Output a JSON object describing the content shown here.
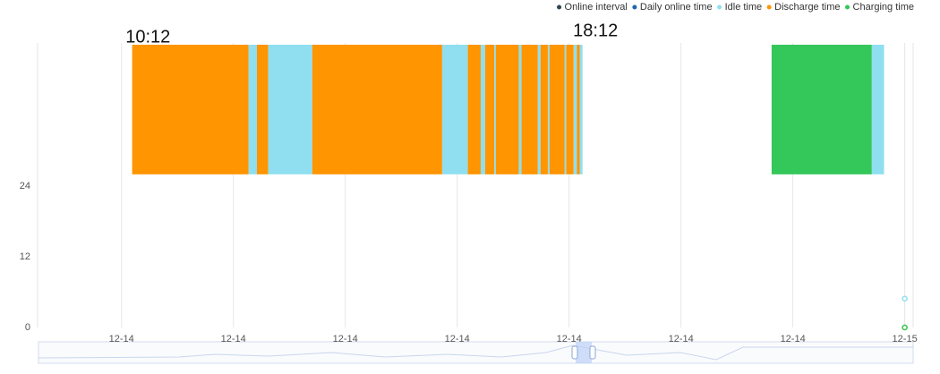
{
  "chart_data": {
    "type": "timeline",
    "annotations": [
      {
        "text": "10:12",
        "x": 10.2
      },
      {
        "text": "18:12",
        "x": 18.2
      }
    ],
    "series": [
      {
        "name": "Online interval",
        "color": "#2f4554"
      },
      {
        "name": "Daily online time",
        "color": "#1f64b0"
      },
      {
        "name": "Idle time",
        "color": "#8fdff0",
        "intervals": [
          [
            12.27,
            12.42
          ],
          [
            12.62,
            13.41
          ],
          [
            15.73,
            16.19
          ],
          [
            16.42,
            16.5
          ],
          [
            16.66,
            16.69
          ],
          [
            17.1,
            17.15
          ],
          [
            17.44,
            17.49
          ],
          [
            17.62,
            17.65
          ],
          [
            17.92,
            17.95
          ],
          [
            18.08,
            18.14
          ],
          [
            18.19,
            18.24
          ],
          [
            23.41,
            23.63
          ]
        ],
        "points": [
          [
            24,
            4.9
          ]
        ]
      },
      {
        "name": "Discharge time",
        "color": "#ff9500",
        "intervals": [
          [
            10.19,
            12.27
          ],
          [
            12.42,
            12.62
          ],
          [
            13.41,
            15.73
          ],
          [
            16.19,
            16.42
          ],
          [
            16.5,
            16.66
          ],
          [
            16.69,
            17.1
          ],
          [
            17.15,
            17.44
          ],
          [
            17.49,
            17.62
          ],
          [
            17.65,
            17.92
          ],
          [
            17.95,
            18.08
          ],
          [
            18.14,
            18.19
          ]
        ],
        "points": [
          [
            24,
            0
          ]
        ]
      },
      {
        "name": "Charging time",
        "color": "#34c759",
        "intervals": [
          [
            21.62,
            23.41
          ]
        ],
        "points": [
          [
            24,
            0
          ]
        ]
      }
    ],
    "band": [
      26,
      48
    ],
    "xlim": [
      8.5,
      24.15
    ],
    "xticks": [
      {
        "value": 10,
        "label": "12-14"
      },
      {
        "value": 12,
        "label": "12-14"
      },
      {
        "value": 14,
        "label": "12-14"
      },
      {
        "value": 16,
        "label": "12-14"
      },
      {
        "value": 18,
        "label": "12-14"
      },
      {
        "value": 20,
        "label": "12-14"
      },
      {
        "value": 22,
        "label": "12-14"
      },
      {
        "value": 24,
        "label": "12-15"
      }
    ],
    "ylim": [
      0,
      48
    ],
    "yticks": [
      0,
      12,
      24
    ],
    "grid": true
  }
}
